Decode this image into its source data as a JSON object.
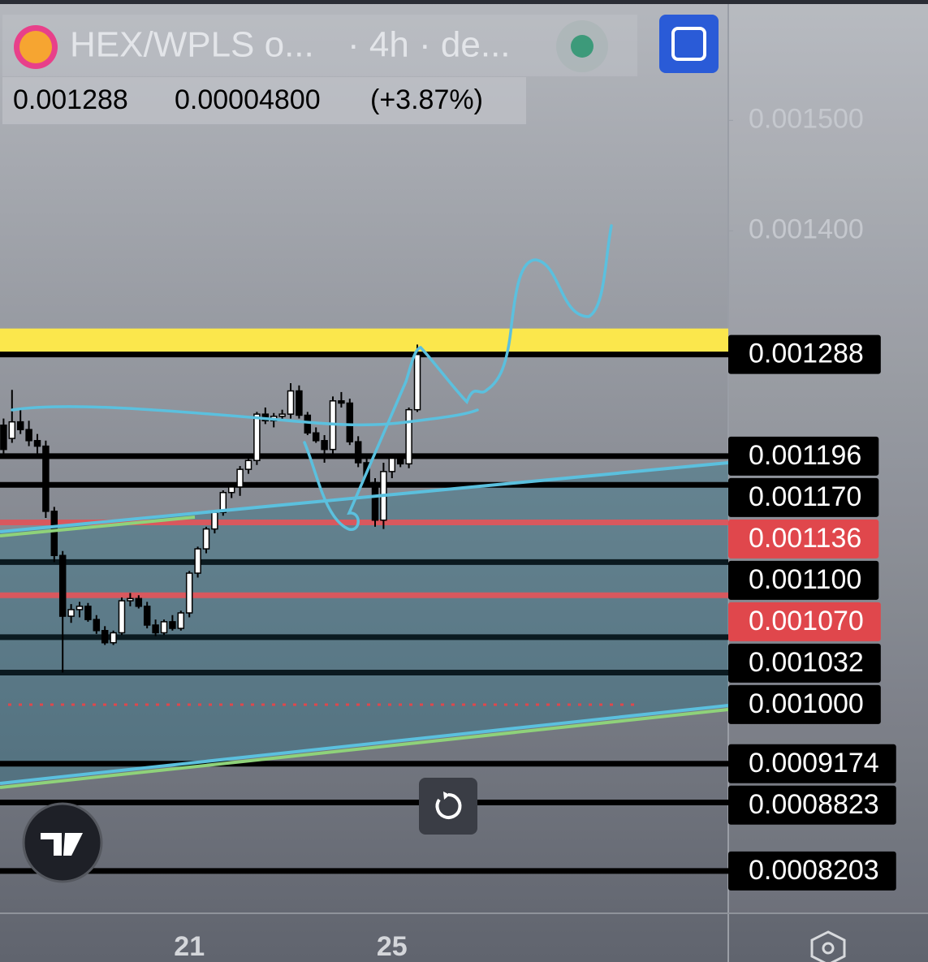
{
  "header": {
    "symbol": "HEX/WPLS o...",
    "interval": "· 4h · de...",
    "price": "0.001288",
    "change": "0.00004800",
    "change_pct": "(+3.87%)"
  },
  "chart_data": {
    "type": "candlestick",
    "categories": [
      null,
      null,
      null,
      null,
      null,
      null,
      null,
      null,
      null,
      null,
      null,
      null,
      null,
      null,
      null,
      null,
      null,
      null,
      null,
      null,
      null,
      null,
      "21",
      null,
      null,
      null,
      null,
      null,
      null,
      null,
      null,
      null,
      null,
      null,
      null,
      null,
      null,
      null,
      null,
      null,
      null,
      null,
      null,
      null,
      null,
      null,
      "25",
      null,
      null,
      null
    ],
    "open": [
      0.001224,
      0.001212,
      0.001227,
      0.00122,
      0.00121,
      0.001205,
      0.001146,
      0.001106,
      0.001051,
      0.001057,
      0.00106,
      0.001048,
      0.001038,
      0.001027,
      0.001036,
      0.001065,
      0.001067,
      0.00106,
      0.001043,
      0.001036,
      0.001046,
      0.00104,
      0.001054,
      0.00109,
      0.001112,
      0.00113,
      0.001145,
      0.001163,
      0.001168,
      0.001184,
      0.001192,
      0.001234,
      0.001228,
      0.001232,
      0.001234,
      0.001255,
      0.001233,
      0.001217,
      0.00121,
      0.001202,
      0.001246,
      0.001244,
      0.001209,
      0.00119,
      0.001172,
      0.001138,
      0.001182,
      0.001194,
      0.001189,
      0.001238
    ],
    "high": [
      0.00123,
      0.001256,
      0.00124,
      0.001228,
      0.001216,
      0.00121,
      0.00115,
      0.00111,
      0.001062,
      0.001064,
      0.001063,
      0.001052,
      0.001042,
      0.001038,
      0.001068,
      0.001072,
      0.00107,
      0.001064,
      0.001048,
      0.001048,
      0.001052,
      0.001056,
      0.001092,
      0.001114,
      0.001132,
      0.001147,
      0.001165,
      0.00117,
      0.001187,
      0.001195,
      0.001236,
      0.00124,
      0.001235,
      0.001238,
      0.001262,
      0.00126,
      0.001236,
      0.001222,
      0.001215,
      0.00125,
      0.001254,
      0.001248,
      0.001214,
      0.001196,
      0.001176,
      0.00119,
      0.001196,
      0.001198,
      0.00124,
      0.001297
    ],
    "low": [
      0.001198,
      0.001208,
      0.001216,
      0.001205,
      0.001198,
      0.00114,
      0.0011,
      0.001,
      0.001045,
      0.00105,
      0.001046,
      0.001035,
      0.001025,
      0.001025,
      0.001034,
      0.00106,
      0.001058,
      0.00104,
      0.001033,
      0.001034,
      0.001038,
      0.001038,
      0.00105,
      0.001086,
      0.001108,
      0.001126,
      0.001142,
      0.001158,
      0.00116,
      0.00118,
      0.001188,
      0.001225,
      0.001222,
      0.001228,
      0.00123,
      0.00123,
      0.001215,
      0.001208,
      0.00119,
      0.001198,
      0.00124,
      0.001206,
      0.001186,
      0.001168,
      0.001132,
      0.00113,
      0.001176,
      0.001186,
      0.001185,
      0.001236
    ],
    "close": [
      0.001202,
      0.001227,
      0.00122,
      0.00121,
      0.001205,
      0.001146,
      0.001106,
      0.001051,
      0.001057,
      0.00106,
      0.001048,
      0.001038,
      0.001027,
      0.001036,
      0.001065,
      0.001067,
      0.00106,
      0.001043,
      0.001036,
      0.001046,
      0.00104,
      0.001054,
      0.00109,
      0.001112,
      0.00113,
      0.001145,
      0.001163,
      0.001168,
      0.001184,
      0.001192,
      0.001234,
      0.001228,
      0.001232,
      0.001234,
      0.001255,
      0.001233,
      0.001217,
      0.00121,
      0.001202,
      0.001246,
      0.001244,
      0.001209,
      0.00119,
      0.001172,
      0.001138,
      0.001182,
      0.001194,
      0.001189,
      0.001238,
      0.001288
    ],
    "up_color": "#ffffff",
    "down_color": "#000000",
    "ylim": [
      0.000782,
      0.001609
    ],
    "yticks": [
      {
        "value": 0.0015,
        "label": "0.001500"
      },
      {
        "value": 0.0014,
        "label": "0.001400"
      }
    ],
    "price_lines": [
      {
        "value": 0.001288,
        "color": "#000000",
        "label_color": "#000000",
        "band_color": "#fbe74c"
      },
      {
        "value": 0.001196,
        "color": "#000000",
        "label_color": "#000000"
      },
      {
        "value": 0.00117,
        "label": "0.001170",
        "color": "#000000",
        "label_color": "#000000"
      },
      {
        "value": 0.001136,
        "color": "#d9585e",
        "label_color": "#e0474c"
      },
      {
        "value": 0.0011,
        "label": "0.001100",
        "color": "#0b1a20",
        "label_color": "#000000"
      },
      {
        "value": 0.00107,
        "label": "0.001070",
        "color": "#d9585e",
        "label_color": "#e0474c"
      },
      {
        "value": 0.001032,
        "color": "#0b1a20",
        "label_color": "#000000"
      },
      {
        "value": 0.001,
        "label": "0.001000",
        "color": "#0b1a20",
        "label_color": "#000000"
      },
      {
        "value": 0.0009174,
        "color": "#000000",
        "label_color": "#000000"
      },
      {
        "value": 0.0008823,
        "color": "#000000",
        "label_color": "#000000"
      },
      {
        "value": 0.0008203,
        "color": "#000000",
        "label_color": "#000000"
      }
    ]
  }
}
